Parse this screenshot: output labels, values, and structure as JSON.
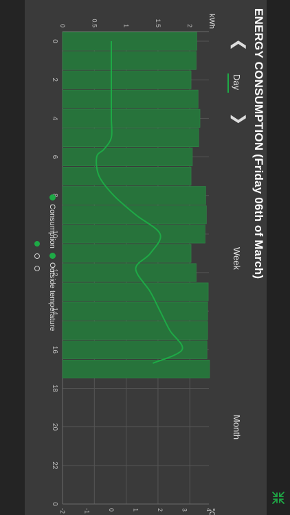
{
  "header": {
    "title": "ENERGY CONSUMPTION (Friday 06th of March)",
    "tabs": [
      {
        "label": "Day",
        "active": true
      },
      {
        "label": "Week",
        "active": false
      },
      {
        "label": "Month",
        "active": false
      }
    ],
    "prev_arrow": "❮",
    "next_arrow": "❯"
  },
  "icons": {
    "prev": "chevron-left-icon",
    "next": "chevron-right-icon",
    "shrink": "collapse-arrows-icon"
  },
  "colors": {
    "accent": "#1ea946",
    "bar_fill": "#27733b",
    "bar_stroke": "#2f8a47",
    "line": "#1ea946",
    "background": "#3a3a3a"
  },
  "legend": [
    {
      "label": "Consumption"
    },
    {
      "label": "Outside temperature"
    }
  ],
  "pager": {
    "count": 3,
    "active": 0
  },
  "chart_data": {
    "type": "bar",
    "grid": true,
    "x": [
      0,
      1,
      2,
      3,
      4,
      5,
      6,
      7,
      8,
      9,
      10,
      11,
      12,
      13,
      14,
      15,
      16,
      17
    ],
    "xlim": [
      -0.5,
      24
    ],
    "xticks": [
      "0",
      "2",
      "4",
      "6",
      "8",
      "10",
      "12",
      "14",
      "16",
      "18",
      "20",
      "22",
      "0"
    ],
    "ylabel": "kWh",
    "ylim": [
      0,
      2.3
    ],
    "yticks": [
      "0",
      "0.5",
      "1",
      "1.5",
      "2"
    ],
    "y2label": "°C",
    "y2lim": [
      -2,
      4
    ],
    "y2ticks": [
      "-2",
      "-1",
      "0",
      "1",
      "2",
      "3",
      "4"
    ],
    "series": [
      {
        "name": "Consumption",
        "type": "bar",
        "axis": "left",
        "values": [
          2.11,
          2.1,
          2.02,
          2.13,
          2.16,
          2.14,
          2.04,
          2.02,
          2.25,
          2.26,
          2.24,
          2.02,
          2.1,
          2.29,
          2.28,
          2.28,
          2.27,
          2.31
        ]
      },
      {
        "name": "Outside temperature",
        "type": "line",
        "axis": "right",
        "x": [
          0,
          1,
          2,
          3,
          4,
          5,
          5.6,
          6,
          7,
          8,
          9,
          10,
          11,
          11.8,
          13,
          14,
          15,
          16,
          16.7
        ],
        "values": [
          0,
          0,
          0,
          0,
          0,
          0,
          -0.3,
          -0.6,
          -0.5,
          0.1,
          1.0,
          2.0,
          1.6,
          1.0,
          1.6,
          2.0,
          2.4,
          2.9,
          1.7
        ]
      }
    ]
  }
}
